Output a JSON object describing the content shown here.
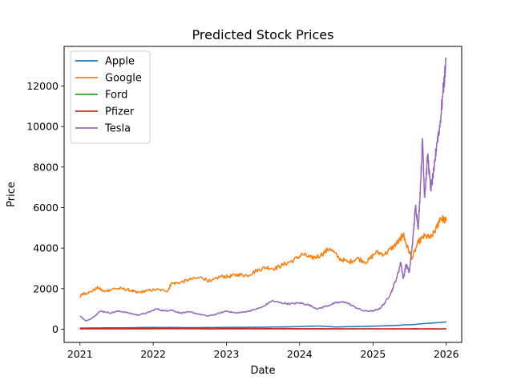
{
  "chart_data": {
    "type": "line",
    "title": "Predicted Stock Prices",
    "xlabel": "Date",
    "ylabel": "Price",
    "xlim": [
      "2020-10-14",
      "2026-03-19"
    ],
    "ylim": [
      -650,
      13950
    ],
    "x_ticks": [
      "2021",
      "2022",
      "2023",
      "2024",
      "2025",
      "2026"
    ],
    "y_ticks": [
      0,
      2000,
      4000,
      6000,
      8000,
      10000,
      12000
    ],
    "y_tick_labels": [
      "0",
      "2000",
      "4000",
      "6000",
      "8000",
      "10000",
      "12000"
    ],
    "grid": false,
    "legend_position": "top-left",
    "series": [
      {
        "name": "Apple",
        "color": "#1f77b4",
        "x": [
          "2021-01-01",
          "2021-07-01",
          "2022-01-01",
          "2022-07-01",
          "2023-01-01",
          "2023-07-01",
          "2024-01-01",
          "2024-04-01",
          "2024-07-01",
          "2025-01-01",
          "2025-04-01",
          "2025-07-01",
          "2025-10-01",
          "2026-01-01"
        ],
        "y": [
          60,
          70,
          90,
          80,
          90,
          100,
          130,
          160,
          110,
          150,
          180,
          220,
          290,
          360
        ]
      },
      {
        "name": "Google",
        "color": "#ff7f0e",
        "x": [
          "2021-01-01",
          "2021-01-15",
          "2021-02-15",
          "2021-04-01",
          "2021-05-01",
          "2021-06-15",
          "2021-08-01",
          "2021-09-15",
          "2021-10-15",
          "2021-12-01",
          "2022-01-15",
          "2022-03-15",
          "2022-04-01",
          "2022-05-15",
          "2022-07-01",
          "2022-09-01",
          "2022-10-15",
          "2022-12-01",
          "2023-01-15",
          "2023-03-01",
          "2023-04-15",
          "2023-06-01",
          "2023-07-15",
          "2023-09-01",
          "2023-10-15",
          "2023-12-01",
          "2024-01-15",
          "2024-03-01",
          "2024-04-15",
          "2024-06-01",
          "2024-07-15",
          "2024-09-01",
          "2024-10-15",
          "2024-12-01",
          "2025-01-15",
          "2025-03-01",
          "2025-04-15",
          "2025-05-15",
          "2025-06-01",
          "2025-06-15",
          "2025-07-15",
          "2025-08-15",
          "2025-09-15",
          "2025-10-15",
          "2025-11-15",
          "2025-12-01",
          "2026-01-01"
        ],
        "y": [
          1600,
          1750,
          1800,
          2050,
          1850,
          2000,
          2000,
          1900,
          1800,
          1900,
          1950,
          1900,
          2250,
          2300,
          2450,
          2550,
          2350,
          2600,
          2600,
          2700,
          2650,
          2900,
          3050,
          3000,
          3200,
          3400,
          3700,
          3500,
          3650,
          4000,
          3500,
          3300,
          3500,
          3300,
          3800,
          3700,
          4100,
          4400,
          4700,
          4200,
          3500,
          4300,
          4600,
          4500,
          5000,
          5500,
          5350
        ]
      },
      {
        "name": "Ford",
        "color": "#2ca02c",
        "x": [
          "2021-01-01",
          "2022-01-01",
          "2023-01-01",
          "2024-01-01",
          "2025-01-01",
          "2026-01-01"
        ],
        "y": [
          10,
          15,
          12,
          12,
          10,
          10
        ]
      },
      {
        "name": "Pfizer",
        "color": "#d62728",
        "x": [
          "2021-01-01",
          "2022-01-01",
          "2023-01-01",
          "2024-01-01",
          "2025-01-01",
          "2026-01-01"
        ],
        "y": [
          40,
          50,
          40,
          30,
          25,
          25
        ]
      },
      {
        "name": "Tesla",
        "color": "#9467bd",
        "x": [
          "2021-01-01",
          "2021-02-01",
          "2021-03-01",
          "2021-04-15",
          "2021-06-01",
          "2021-07-15",
          "2021-09-01",
          "2021-10-15",
          "2021-12-01",
          "2022-01-15",
          "2022-03-01",
          "2022-04-01",
          "2022-05-15",
          "2022-07-01",
          "2022-08-15",
          "2022-10-01",
          "2022-11-15",
          "2023-01-01",
          "2023-02-15",
          "2023-04-01",
          "2023-05-15",
          "2023-07-01",
          "2023-08-15",
          "2023-10-01",
          "2023-11-15",
          "2024-01-01",
          "2024-02-15",
          "2024-04-01",
          "2024-05-15",
          "2024-07-01",
          "2024-08-15",
          "2024-10-01",
          "2024-11-15",
          "2025-01-01",
          "2025-02-01",
          "2025-03-01",
          "2025-04-01",
          "2025-05-01",
          "2025-05-20",
          "2025-06-01",
          "2025-06-15",
          "2025-07-01",
          "2025-07-20",
          "2025-08-01",
          "2025-08-15",
          "2025-08-25",
          "2025-09-05",
          "2025-09-15",
          "2025-10-01",
          "2025-10-15",
          "2025-11-01",
          "2025-11-15",
          "2025-12-01",
          "2025-12-15",
          "2026-01-01"
        ],
        "y": [
          650,
          400,
          550,
          900,
          800,
          900,
          800,
          700,
          800,
          1000,
          900,
          950,
          800,
          850,
          750,
          650,
          750,
          900,
          800,
          850,
          950,
          1100,
          1400,
          1300,
          1250,
          1300,
          1200,
          1000,
          1150,
          1300,
          1350,
          1100,
          900,
          900,
          1000,
          1300,
          1800,
          2600,
          3300,
          2500,
          3200,
          2800,
          4600,
          6100,
          5000,
          7000,
          9400,
          6500,
          8600,
          6900,
          7800,
          9200,
          10100,
          11600,
          13300
        ]
      }
    ]
  }
}
